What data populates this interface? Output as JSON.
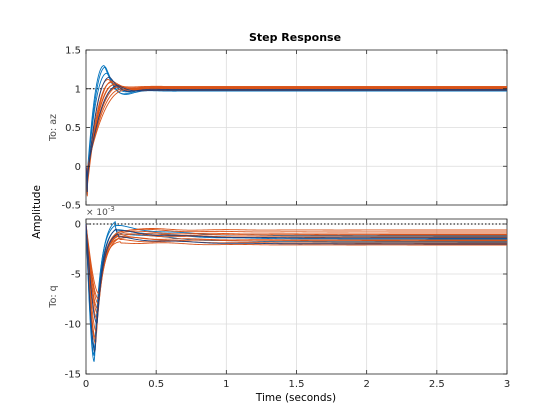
{
  "title": "Step Response",
  "xlabel": "Time (seconds)",
  "ylabel": "Amplitude",
  "colors": {
    "nominal": "#0072BD",
    "family": "#D95319",
    "dark": "#1f3f7a"
  },
  "chart_data": [
    {
      "type": "line",
      "channel": "To: az",
      "xlim": [
        0,
        3
      ],
      "ylim": [
        -0.5,
        1.5
      ],
      "x_ticks": [
        0,
        0.5,
        1,
        1.5,
        2,
        2.5,
        3
      ],
      "x_tick_labels": [
        "0",
        "0.5",
        "1",
        "1.5",
        "2",
        "2.5",
        "3"
      ],
      "y_ticks": [
        -0.5,
        0,
        0.5,
        1,
        1.5
      ],
      "y_tick_labels": [
        "-0.5",
        "0",
        "0.5",
        "1",
        "1.5"
      ],
      "reference_level": 1,
      "grid": true,
      "series": [
        {
          "role": "nominal",
          "initial": -0.35,
          "settle_time": 0.13,
          "peak": 1.3,
          "final": 0.98
        },
        {
          "role": "nominal",
          "initial": -0.4,
          "settle_time": 0.14,
          "peak": 1.28,
          "final": 0.97
        },
        {
          "role": "nominal",
          "initial": -0.3,
          "settle_time": 0.15,
          "peak": 1.2,
          "final": 0.99
        },
        {
          "role": "family",
          "initial": -0.38,
          "settle_time": 0.16,
          "peak": 1.12,
          "final": 1.02
        },
        {
          "role": "family",
          "initial": -0.32,
          "settle_time": 0.18,
          "peak": 1.08,
          "final": 1.03
        },
        {
          "role": "family",
          "initial": -0.28,
          "settle_time": 0.2,
          "peak": 1.05,
          "final": 1.01
        },
        {
          "role": "family",
          "initial": -0.22,
          "settle_time": 0.22,
          "peak": 1.02,
          "final": 1.0
        },
        {
          "role": "family",
          "initial": -0.15,
          "settle_time": 0.25,
          "peak": 0.99,
          "final": 0.99
        },
        {
          "role": "family",
          "initial": -0.1,
          "settle_time": 0.28,
          "peak": 0.98,
          "final": 0.98
        },
        {
          "role": "family",
          "initial": -0.42,
          "settle_time": 0.19,
          "peak": 1.1,
          "final": 1.02
        },
        {
          "role": "family",
          "initial": -0.25,
          "settle_time": 0.21,
          "peak": 1.06,
          "final": 1.01
        },
        {
          "role": "family",
          "initial": -0.18,
          "settle_time": 0.24,
          "peak": 1.03,
          "final": 1.0
        },
        {
          "role": "dark",
          "initial": -0.36,
          "settle_time": 0.17,
          "peak": 1.15,
          "final": 0.99
        },
        {
          "role": "dark",
          "initial": -0.2,
          "settle_time": 0.23,
          "peak": 1.04,
          "final": 0.98
        }
      ]
    },
    {
      "type": "line",
      "channel": "To: q",
      "xlim": [
        0,
        3
      ],
      "ylim": [
        -15,
        0.5
      ],
      "y_scale_exponent": "× 10^-3",
      "exponent_base": "× 10",
      "exponent_power": "-3",
      "x_ticks": [
        0,
        0.5,
        1,
        1.5,
        2,
        2.5,
        3
      ],
      "x_tick_labels": [
        "0",
        "0.5",
        "1",
        "1.5",
        "2",
        "2.5",
        "3"
      ],
      "y_ticks": [
        -15,
        -10,
        -5,
        0
      ],
      "y_tick_labels": [
        "-15",
        "-10",
        "-5",
        "0"
      ],
      "reference_level": 0,
      "grid": true,
      "series": [
        {
          "role": "nominal",
          "min": -13.8,
          "min_time": 0.06,
          "overshoot": 0.6,
          "final": -1.2
        },
        {
          "role": "nominal",
          "min": -13.2,
          "min_time": 0.06,
          "overshoot": 0.3,
          "final": -1.5
        },
        {
          "role": "nominal",
          "min": -12.5,
          "min_time": 0.065,
          "overshoot": 0.0,
          "final": -1.8
        },
        {
          "role": "family",
          "min": -12.0,
          "min_time": 0.07,
          "overshoot": -0.3,
          "final": -0.8
        },
        {
          "role": "family",
          "min": -10.8,
          "min_time": 0.075,
          "overshoot": -0.6,
          "final": -1.0
        },
        {
          "role": "family",
          "min": -9.5,
          "min_time": 0.08,
          "overshoot": -0.9,
          "final": -1.3
        },
        {
          "role": "family",
          "min": -8.5,
          "min_time": 0.085,
          "overshoot": -1.1,
          "final": -1.6
        },
        {
          "role": "family",
          "min": -7.5,
          "min_time": 0.09,
          "overshoot": -1.3,
          "final": -1.9
        },
        {
          "role": "family",
          "min": -7.0,
          "min_time": 0.095,
          "overshoot": -1.5,
          "final": -2.1
        },
        {
          "role": "family",
          "min": -11.5,
          "min_time": 0.07,
          "overshoot": -0.4,
          "final": -0.6
        },
        {
          "role": "family",
          "min": -9.0,
          "min_time": 0.085,
          "overshoot": -1.0,
          "final": -1.1
        },
        {
          "role": "family",
          "min": -8.0,
          "min_time": 0.09,
          "overshoot": -1.2,
          "final": -1.7
        },
        {
          "role": "dark",
          "min": -12.8,
          "min_time": 0.065,
          "overshoot": -0.2,
          "final": -1.4
        },
        {
          "role": "dark",
          "min": -10.0,
          "min_time": 0.08,
          "overshoot": -0.8,
          "final": -2.0
        }
      ]
    }
  ]
}
